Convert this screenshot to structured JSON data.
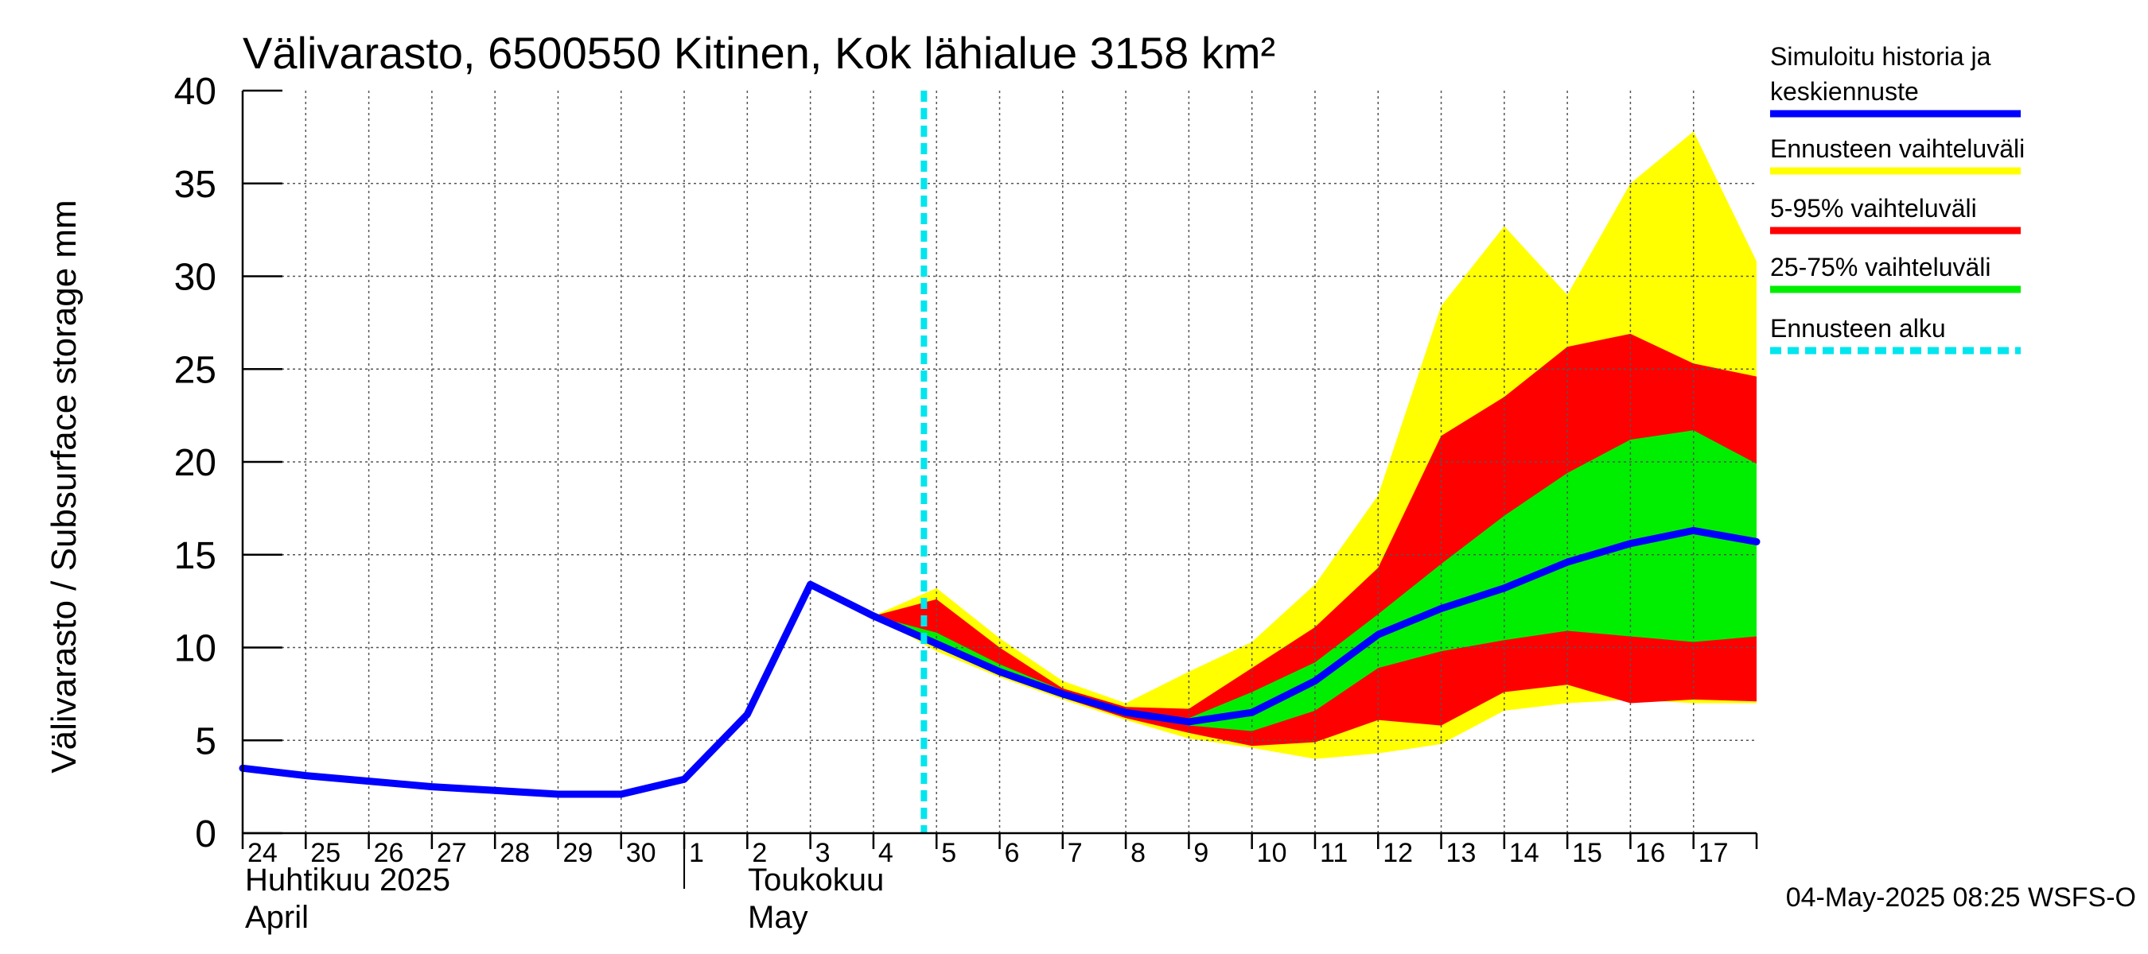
{
  "chart_data": {
    "type": "area",
    "title": "Välivarasto, 6500550 Kitinen, Kok lähialue 3158 km²",
    "ylabel": "Välivarasto / Subsurface storage  mm",
    "ylim": [
      0,
      40
    ],
    "yticks": [
      "0",
      "5",
      "10",
      "15",
      "20",
      "25",
      "30",
      "35",
      "40"
    ],
    "grid": true,
    "x_day_labels": [
      "24",
      "25",
      "26",
      "27",
      "28",
      "29",
      "30",
      "1",
      "2",
      "3",
      "4",
      "5",
      "6",
      "7",
      "8",
      "9",
      "10",
      "11",
      "12",
      "13",
      "14",
      "15",
      "16",
      "17"
    ],
    "month_labels": [
      {
        "line1": "Huhtikuu  2025",
        "line2": "April"
      },
      {
        "line1": "Toukokuu",
        "line2": "May"
      }
    ],
    "forecast_start_x": 10.8,
    "series": [
      {
        "name": "Simuloitu historia ja keskiennuste",
        "color": "#0000ff",
        "x": [
          0,
          1,
          2,
          3,
          4,
          5,
          6,
          7,
          8,
          9,
          10,
          11,
          12,
          13,
          14,
          15,
          16,
          17,
          18,
          19,
          20,
          21,
          22,
          23,
          24
        ],
        "values": [
          3.5,
          3.1,
          2.8,
          2.5,
          2.3,
          2.1,
          2.1,
          2.9,
          6.4,
          13.4,
          11.7,
          10.2,
          8.7,
          7.5,
          6.5,
          6.0,
          6.5,
          8.2,
          10.7,
          12.1,
          13.2,
          14.6,
          15.6,
          16.3,
          15.7
        ]
      }
    ],
    "bands": [
      {
        "name": "Ennusteen vaihteluväli",
        "color": "#ffff00",
        "x": [
          10,
          11,
          12,
          13,
          14,
          15,
          16,
          17,
          18,
          19,
          20,
          21,
          22,
          23,
          24
        ],
        "low": [
          11.7,
          9.8,
          8.4,
          7.2,
          6.1,
          5.1,
          4.6,
          4.0,
          4.3,
          4.8,
          6.6,
          7.0,
          7.2,
          7.0,
          7.0
        ],
        "high": [
          11.7,
          13.2,
          10.5,
          8.2,
          7.0,
          8.7,
          10.3,
          13.4,
          18.2,
          28.4,
          32.7,
          29.0,
          35.0,
          37.8,
          30.8
        ]
      },
      {
        "name": "5-95% vaihteluväli",
        "color": "#ff0000",
        "x": [
          10,
          11,
          12,
          13,
          14,
          15,
          16,
          17,
          18,
          19,
          20,
          21,
          22,
          23,
          24
        ],
        "low": [
          11.7,
          10.0,
          8.5,
          7.3,
          6.2,
          5.4,
          4.7,
          4.9,
          6.1,
          5.8,
          7.6,
          8.0,
          7.0,
          7.2,
          7.1
        ],
        "high": [
          11.7,
          12.6,
          10.0,
          7.8,
          6.8,
          6.7,
          8.9,
          11.1,
          14.3,
          21.4,
          23.5,
          26.2,
          26.9,
          25.3,
          24.6
        ]
      },
      {
        "name": "25-75% vaihteluväli",
        "color": "#00ee00",
        "x": [
          10,
          11,
          12,
          13,
          14,
          15,
          16,
          17,
          18,
          19,
          20,
          21,
          22,
          23,
          24
        ],
        "low": [
          11.7,
          10.4,
          8.8,
          7.5,
          6.4,
          5.8,
          5.5,
          6.6,
          8.9,
          9.8,
          10.4,
          10.9,
          10.6,
          10.3,
          10.6
        ],
        "high": [
          11.7,
          10.8,
          9.1,
          7.7,
          6.6,
          6.2,
          7.6,
          9.2,
          11.8,
          14.5,
          17.1,
          19.4,
          21.2,
          21.7,
          19.9
        ]
      }
    ],
    "legend": [
      {
        "label_line1": "Simuloitu historia ja",
        "label_line2": "keskiennuste",
        "color": "#0000ff",
        "style": "solid"
      },
      {
        "label_line1": "Ennusteen vaihteluväli",
        "label_line2": "",
        "color": "#ffff00",
        "style": "solid"
      },
      {
        "label_line1": "5-95% vaihteluväli",
        "label_line2": "",
        "color": "#ff0000",
        "style": "solid"
      },
      {
        "label_line1": "25-75% vaihteluväli",
        "label_line2": "",
        "color": "#00ee00",
        "style": "solid"
      },
      {
        "label_line1": "Ennusteen alku",
        "label_line2": "",
        "color": "#00e5ee",
        "style": "dashed"
      }
    ],
    "legend_placement": "right",
    "footer": "04-May-2025 08:25 WSFS-O"
  }
}
